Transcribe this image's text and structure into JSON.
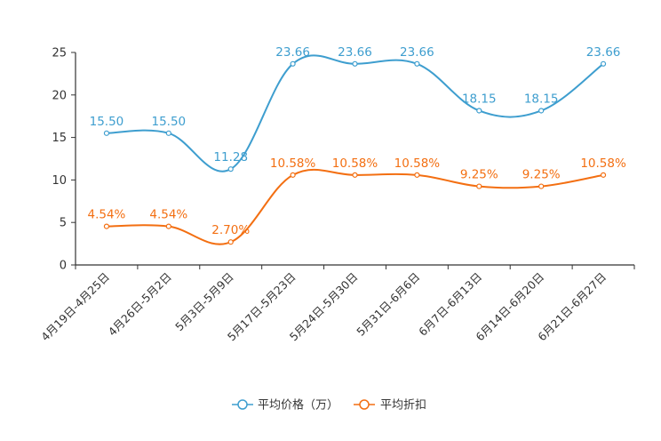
{
  "chart_data": {
    "type": "line",
    "smooth": true,
    "categories": [
      "4月19日-4月25日",
      "4月26日-5月2日",
      "5月3日-5月9日",
      "5月17日-5月23日",
      "5月24日-5月30日",
      "5月31日-6月6日",
      "6月7日-6月13日",
      "6月14日-6月20日",
      "6月21日-6月27日"
    ],
    "ylim": [
      0,
      25
    ],
    "yticks": [
      0,
      5,
      10,
      15,
      20,
      25
    ],
    "grid": false,
    "legend_position": "bottom-center",
    "series": [
      {
        "name": "平均价格（万）",
        "color": "#3e9ecf",
        "values": [
          15.5,
          15.5,
          11.28,
          23.66,
          23.66,
          23.66,
          18.15,
          18.15,
          23.66
        ],
        "labels": [
          "15.50",
          "15.50",
          "11.28",
          "23.66",
          "23.66",
          "23.66",
          "18.15",
          "18.15",
          "23.66"
        ]
      },
      {
        "name": "平均折扣",
        "color": "#f36f12",
        "values": [
          4.54,
          4.54,
          2.7,
          10.58,
          10.58,
          10.58,
          9.25,
          9.25,
          10.58
        ],
        "labels": [
          "4.54%",
          "4.54%",
          "2.70%",
          "10.58%",
          "10.58%",
          "10.58%",
          "9.25%",
          "9.25%",
          "10.58%"
        ]
      }
    ]
  }
}
